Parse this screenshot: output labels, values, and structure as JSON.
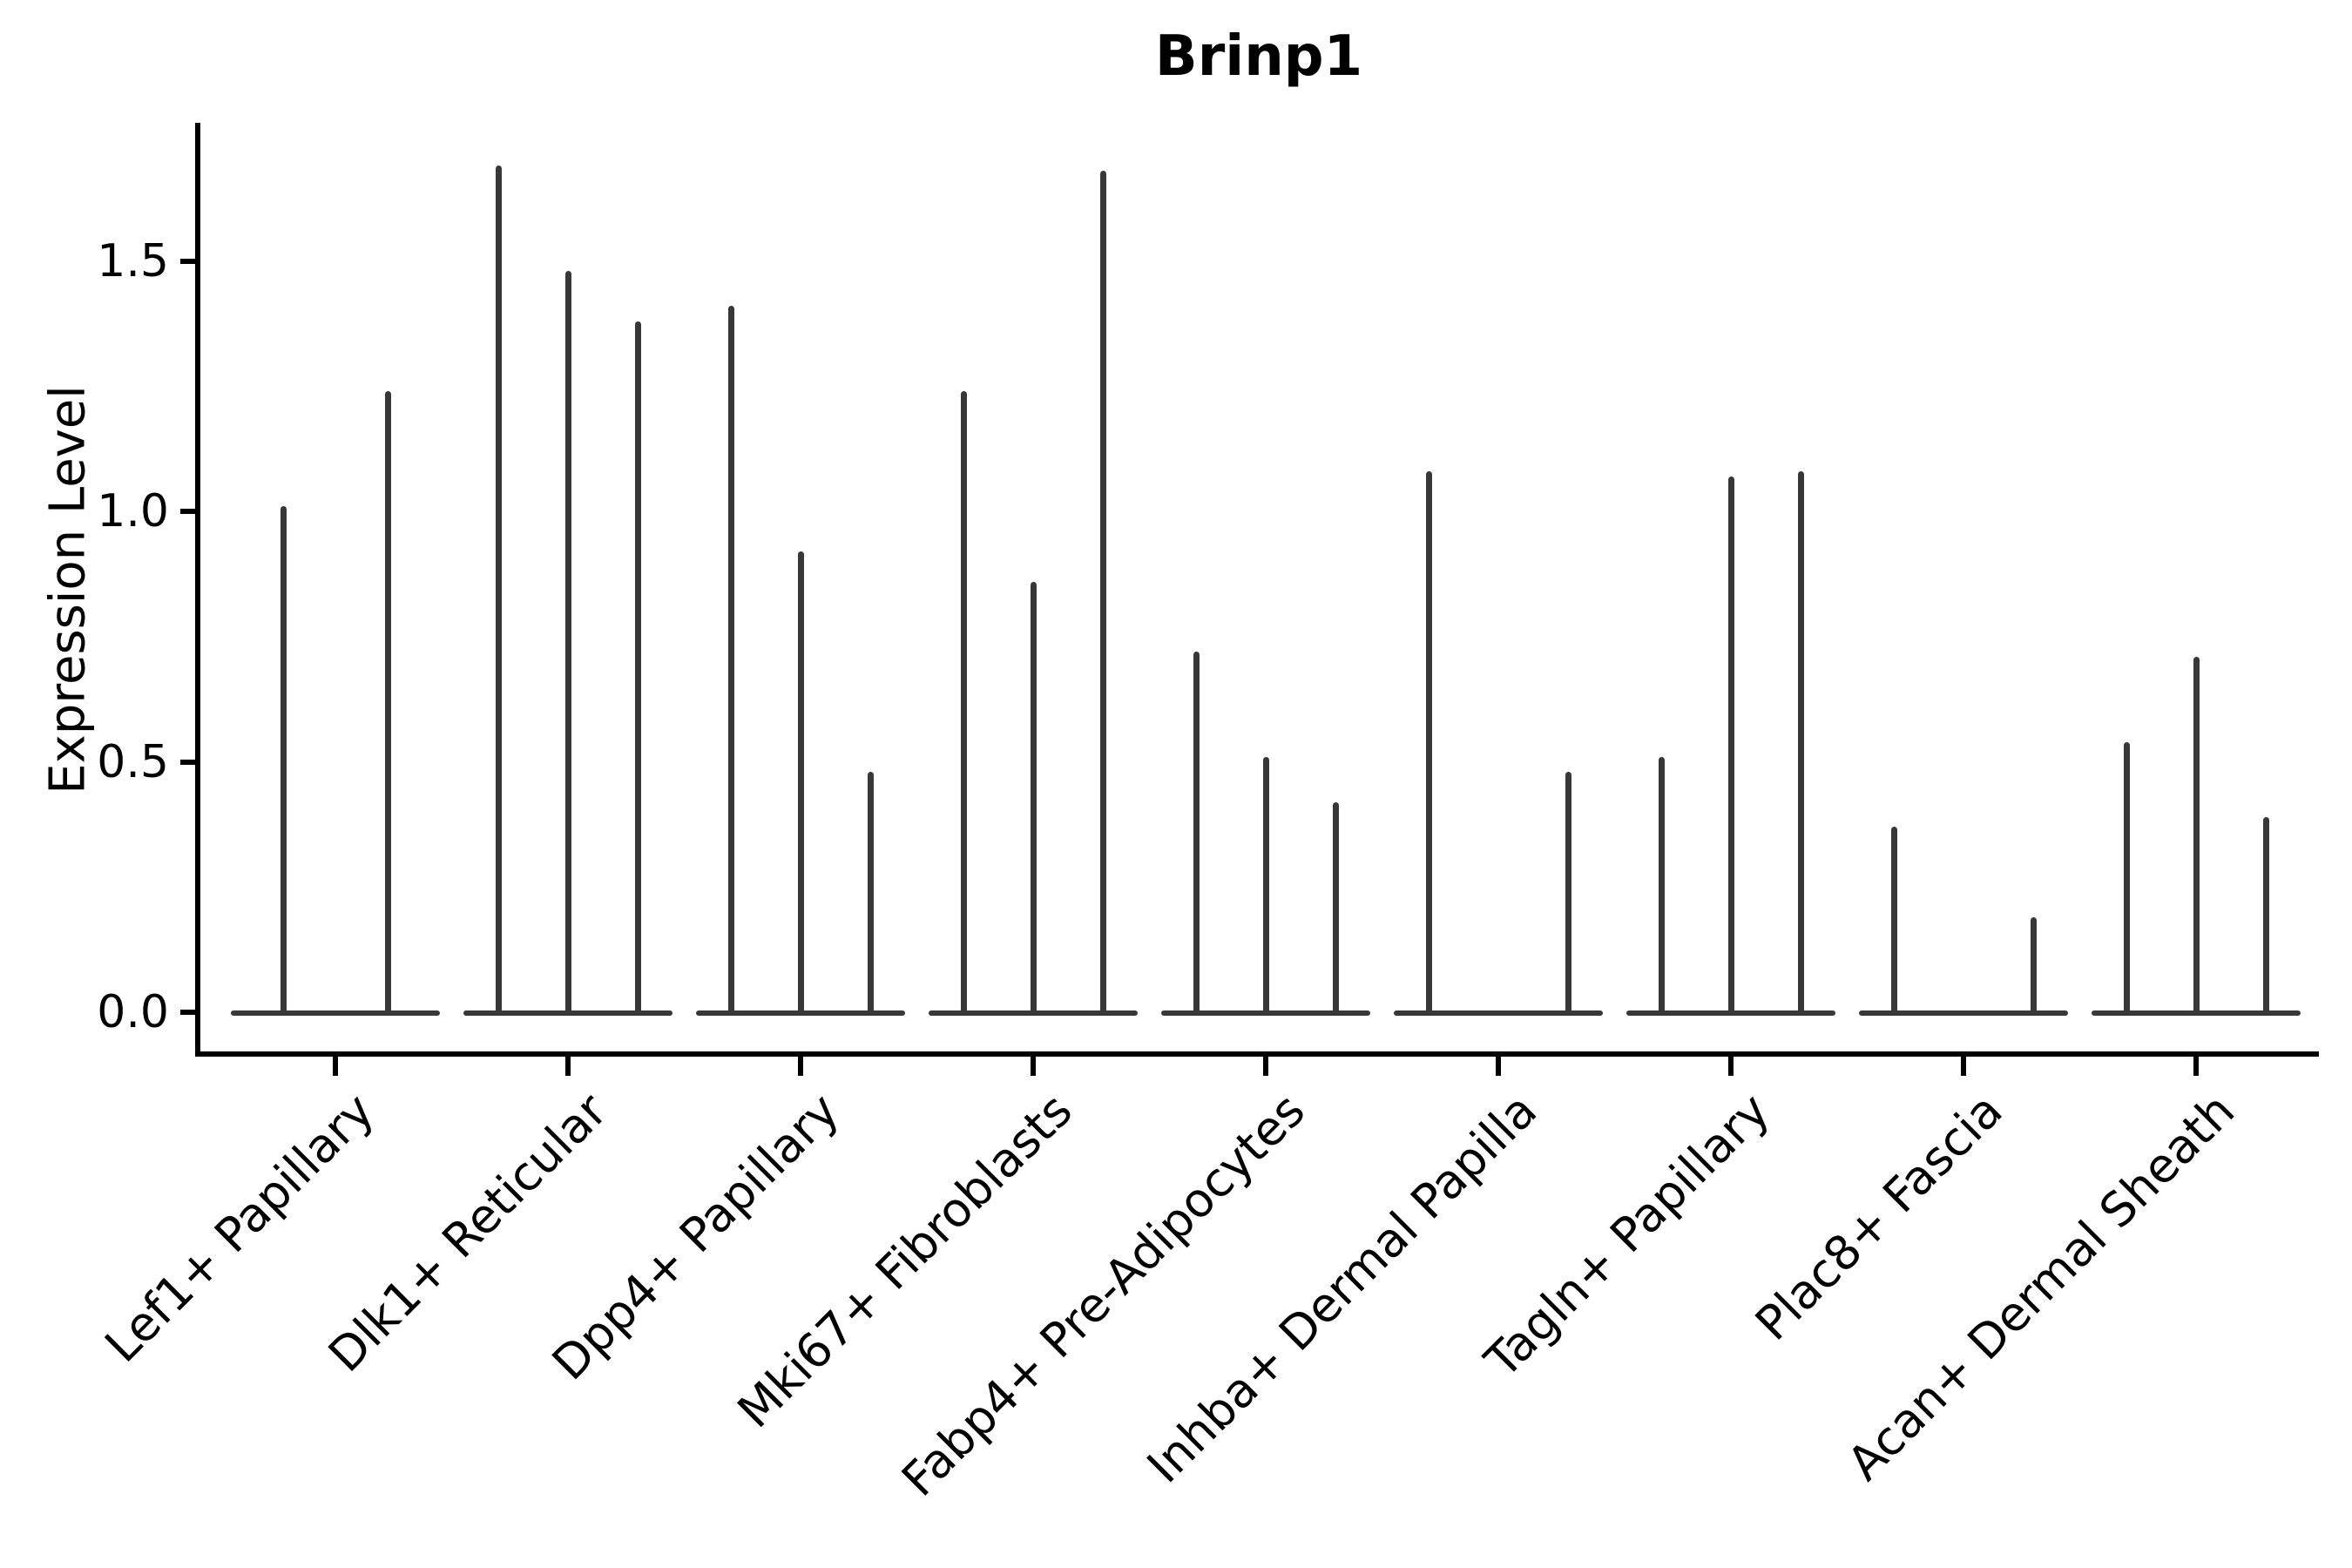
{
  "figure": {
    "title": "Brinp1"
  },
  "y_axis": {
    "label": "Expression Level",
    "tick_labels": [
      "0.0",
      "0.5",
      "1.0",
      "1.5"
    ]
  },
  "x_axis": {
    "categories": [
      "Lef1+ Papillary",
      "Dlk1+ Reticular",
      "Dpp4+ Papillary",
      "Mki67+ Fibroblasts",
      "Fabp4+ Pre-Adipocytes",
      "Inhba+ Dermal Papilla",
      "Tagln+ Papillary",
      "Plac8+ Fascia",
      "Acan+ Dermal Sheath"
    ]
  },
  "chart_data": {
    "type": "violin",
    "title": "Brinp1",
    "xlabel": "",
    "ylabel": "Expression Level",
    "ylim": [
      -0.08,
      1.78
    ],
    "yticks": [
      0.0,
      0.5,
      1.0,
      1.5
    ],
    "grid": false,
    "legend": "none",
    "categories": [
      "Lef1+ Papillary",
      "Dlk1+ Reticular",
      "Dpp4+ Papillary",
      "Mki67+ Fibroblasts",
      "Fabp4+ Pre-Adipocytes",
      "Inhba+ Dermal Papilla",
      "Tagln+ Papillary",
      "Plac8+ Fascia",
      "Acan+ Dermal Sheath"
    ],
    "series": [
      {
        "category": "Lef1+ Papillary",
        "violin_max_expression": [
          1.01,
          1.24
        ]
      },
      {
        "category": "Dlk1+ Reticular",
        "violin_max_expression": [
          1.69,
          1.48,
          1.38
        ]
      },
      {
        "category": "Dpp4+ Papillary",
        "violin_max_expression": [
          1.41,
          0.92,
          0.48
        ]
      },
      {
        "category": "Mki67+ Fibroblasts",
        "violin_max_expression": [
          1.24,
          0.86,
          1.68
        ]
      },
      {
        "category": "Fabp4+ Pre-Adipocytes",
        "violin_max_expression": [
          0.72,
          0.51,
          0.42
        ]
      },
      {
        "category": "Inhba+ Dermal Papilla",
        "violin_max_expression": [
          1.08,
          0,
          0.48
        ]
      },
      {
        "category": "Tagln+ Papillary",
        "violin_max_expression": [
          0.51,
          1.07,
          1.08
        ]
      },
      {
        "category": "Plac8+ Fascia",
        "violin_max_expression": [
          0.37,
          0,
          0.19
        ]
      },
      {
        "category": "Acan+ Dermal Sheath",
        "violin_max_expression": [
          0.54,
          0.71,
          0.39
        ]
      }
    ],
    "style": {
      "violin_color": "#383838",
      "axis_color": "#000000",
      "note": "Each category shows 2-3 extremely thin violins (distribution massed at 0 with a narrow spike up to the max expression value); violins with max 0 appear only as the flat baseline segment."
    }
  }
}
